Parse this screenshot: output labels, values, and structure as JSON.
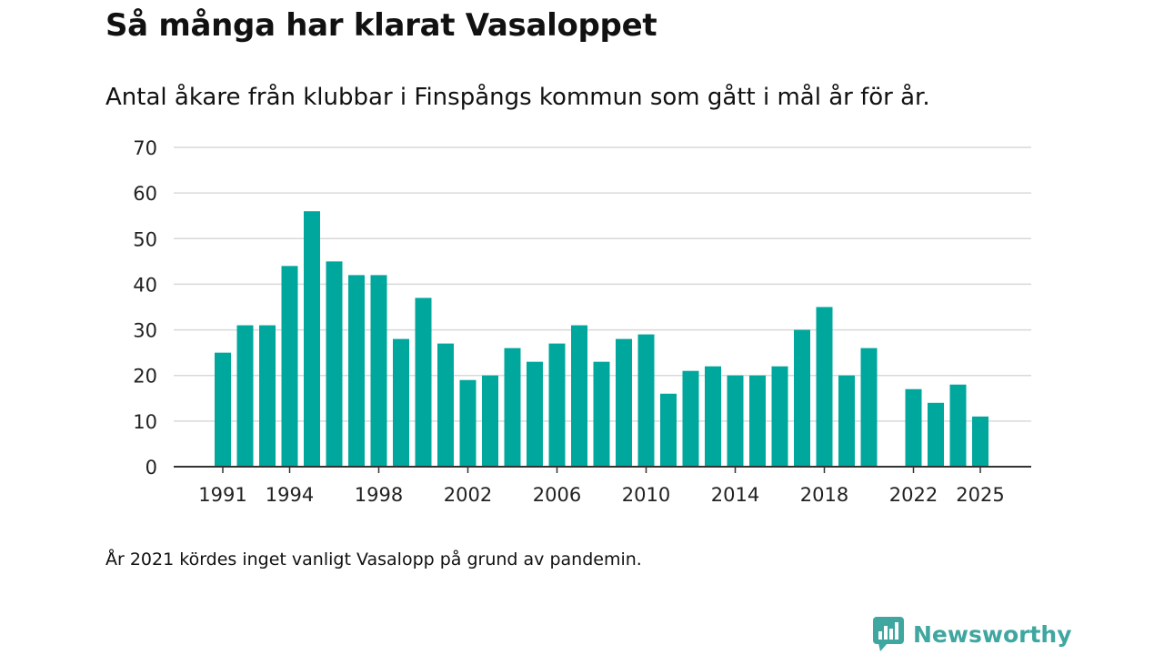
{
  "title": "Så många har klarat Vasaloppet",
  "subtitle": "Antal åkare från klubbar i Finspångs kommun som gått i mål år för år.",
  "note": "År 2021 kördes inget vanligt Vasalopp på grund av pandemin.",
  "brand": {
    "name": "Newsworthy",
    "icon": "newsworthy-logo-icon"
  },
  "colors": {
    "bar": "#00a79c",
    "grid": "#d9d9d9",
    "axis": "#333333",
    "brand": "#3fa7a0"
  },
  "chart_data": {
    "type": "bar",
    "title": "Så många har klarat Vasaloppet",
    "xlabel": "",
    "ylabel": "",
    "ylim": [
      0,
      70
    ],
    "yticks": [
      0,
      10,
      20,
      30,
      40,
      50,
      60,
      70
    ],
    "xticks": [
      1991,
      1994,
      1998,
      2002,
      2006,
      2010,
      2014,
      2018,
      2022,
      2025
    ],
    "grid": true,
    "categories": [
      1991,
      1992,
      1993,
      1994,
      1995,
      1996,
      1997,
      1998,
      1999,
      2000,
      2001,
      2002,
      2003,
      2004,
      2005,
      2006,
      2007,
      2008,
      2009,
      2010,
      2011,
      2012,
      2013,
      2014,
      2015,
      2016,
      2017,
      2018,
      2019,
      2020,
      2021,
      2022,
      2023,
      2024,
      2025
    ],
    "values": [
      25,
      31,
      31,
      44,
      56,
      45,
      42,
      42,
      28,
      37,
      27,
      19,
      20,
      26,
      23,
      27,
      31,
      23,
      28,
      29,
      16,
      21,
      22,
      20,
      20,
      22,
      30,
      35,
      20,
      26,
      null,
      17,
      14,
      18,
      11
    ]
  }
}
